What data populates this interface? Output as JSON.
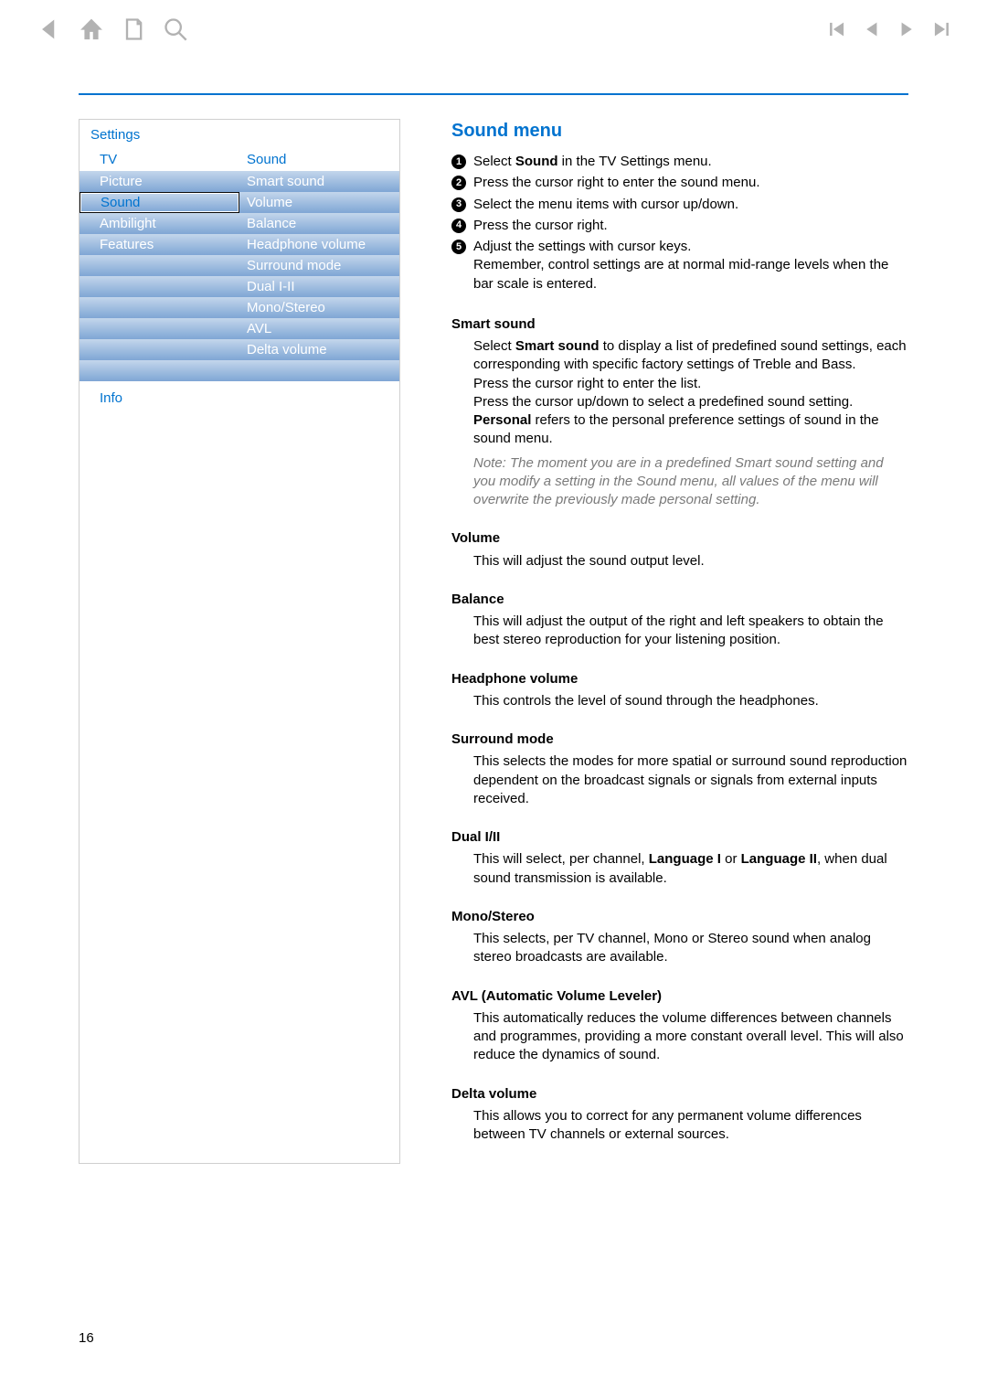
{
  "colors": {
    "accent": "#0073cf",
    "icon": "#b2b2b2",
    "gradTop": "#c3d6ec",
    "gradBottom": "#7fa6d5",
    "noteText": "#7a7a7a"
  },
  "pageNumber": "16",
  "toolbarIcons": {
    "left": [
      "back",
      "home",
      "print",
      "search"
    ],
    "right": [
      "first",
      "prev",
      "next",
      "last"
    ]
  },
  "settings": {
    "title": "Settings",
    "leftHeader": "TV",
    "rightHeader": "Sound",
    "leftItems": [
      "Picture",
      "Sound",
      "Ambilight",
      "Features"
    ],
    "leftSelectedIndex": 1,
    "leftTotalRows": 10,
    "rightItems": [
      "Smart sound",
      "Volume",
      "Balance",
      "Headphone volume",
      "Surround mode",
      "Dual I-II",
      "Mono/Stereo",
      "AVL",
      "Delta volume"
    ],
    "rightTotalRows": 10,
    "footer": "Info"
  },
  "right": {
    "title": "Sound menu",
    "steps": [
      {
        "pre": "Select ",
        "bold": "Sound",
        "post": " in the TV Settings menu."
      },
      {
        "pre": "Press the cursor right to enter the sound menu.",
        "bold": "",
        "post": ""
      },
      {
        "pre": "Select the menu items with cursor up/down.",
        "bold": "",
        "post": ""
      },
      {
        "pre": "Press the cursor right.",
        "bold": "",
        "post": ""
      },
      {
        "pre": "Adjust the settings with cursor keys.",
        "bold": "",
        "post": "",
        "extra": "Remember, control settings are at normal mid-range levels when the bar scale is entered."
      }
    ],
    "sections": {
      "smartSound": {
        "heading": "Smart sound",
        "line1a": "Select ",
        "line1bold": "Smart sound",
        "line1b": " to display a list of predefined sound settings, each corresponding with specific factory settings of Treble and Bass.",
        "line2": "Press the cursor right to enter the list.",
        "line3": "Press the cursor up/down to select a predefined sound setting.",
        "line4bold": "Personal",
        "line4rest": " refers to the personal preference settings of sound in the sound menu.",
        "note": "Note: The moment you are in a predefined Smart sound setting and you modify a setting in the Sound menu, all values of the menu will overwrite the previously made personal setting."
      },
      "volume": {
        "heading": "Volume",
        "body": "This will adjust the sound output level."
      },
      "balance": {
        "heading": "Balance",
        "body": "This will adjust the output of the right and left speakers to obtain the best stereo reproduction for your listening position."
      },
      "headphone": {
        "heading": "Headphone volume",
        "body": "This controls the level of sound through the headphones."
      },
      "surround": {
        "heading": "Surround mode",
        "body": "This selects the modes for more spatial or surround sound reproduction dependent on the broadcast signals or signals from external inputs received."
      },
      "dual": {
        "heading": "Dual I/II",
        "pre": "This will select, per channel, ",
        "b1": "Language I",
        "mid": " or ",
        "b2": "Language II",
        "post": ", when dual sound transmission is available."
      },
      "mono": {
        "heading": "Mono/Stereo",
        "body": "This selects, per TV channel, Mono or Stereo sound when analog stereo broadcasts are available."
      },
      "avl": {
        "heading": "AVL (Automatic Volume Leveler)",
        "body": "This automatically reduces the volume differences between channels and programmes, providing a more constant overall level. This will also reduce the dynamics of sound."
      },
      "delta": {
        "heading": "Delta volume",
        "body": "This allows you to correct for any permanent volume differences between TV channels or external sources."
      }
    }
  }
}
